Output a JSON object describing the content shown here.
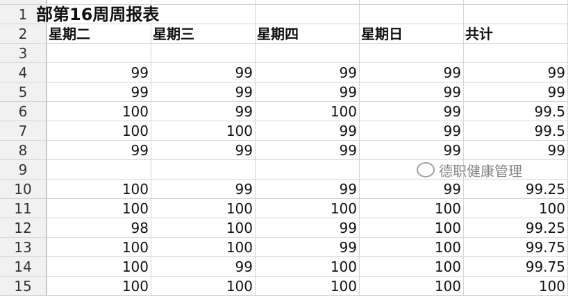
{
  "title": "部第16周周报表",
  "headers": [
    "星期二",
    "星期三",
    "星期四",
    "星期日",
    "共计"
  ],
  "rows": [
    {
      "n": "3",
      "v": [
        "",
        "",
        "",
        "",
        ""
      ]
    },
    {
      "n": "4",
      "v": [
        "99",
        "99",
        "99",
        "99",
        "99"
      ]
    },
    {
      "n": "5",
      "v": [
        "99",
        "99",
        "99",
        "99",
        "99"
      ]
    },
    {
      "n": "6",
      "v": [
        "100",
        "99",
        "100",
        "99",
        "99.5"
      ]
    },
    {
      "n": "7",
      "v": [
        "100",
        "100",
        "99",
        "99",
        "99.5"
      ]
    },
    {
      "n": "8",
      "v": [
        "99",
        "99",
        "99",
        "99",
        "99"
      ]
    },
    {
      "n": "9",
      "v": [
        "",
        "",
        "",
        "",
        ""
      ]
    },
    {
      "n": "10",
      "v": [
        "100",
        "99",
        "99",
        "99",
        "99.25"
      ]
    },
    {
      "n": "11",
      "v": [
        "100",
        "100",
        "100",
        "100",
        "100"
      ]
    },
    {
      "n": "12",
      "v": [
        "98",
        "100",
        "99",
        "100",
        "99.25"
      ]
    },
    {
      "n": "13",
      "v": [
        "100",
        "100",
        "99",
        "100",
        "99.75"
      ]
    },
    {
      "n": "14",
      "v": [
        "100",
        "99",
        "100",
        "100",
        "99.75"
      ]
    },
    {
      "n": "15",
      "v": [
        "100",
        "100",
        "100",
        "100",
        "100"
      ]
    }
  ],
  "watermark": "德职健康管理"
}
